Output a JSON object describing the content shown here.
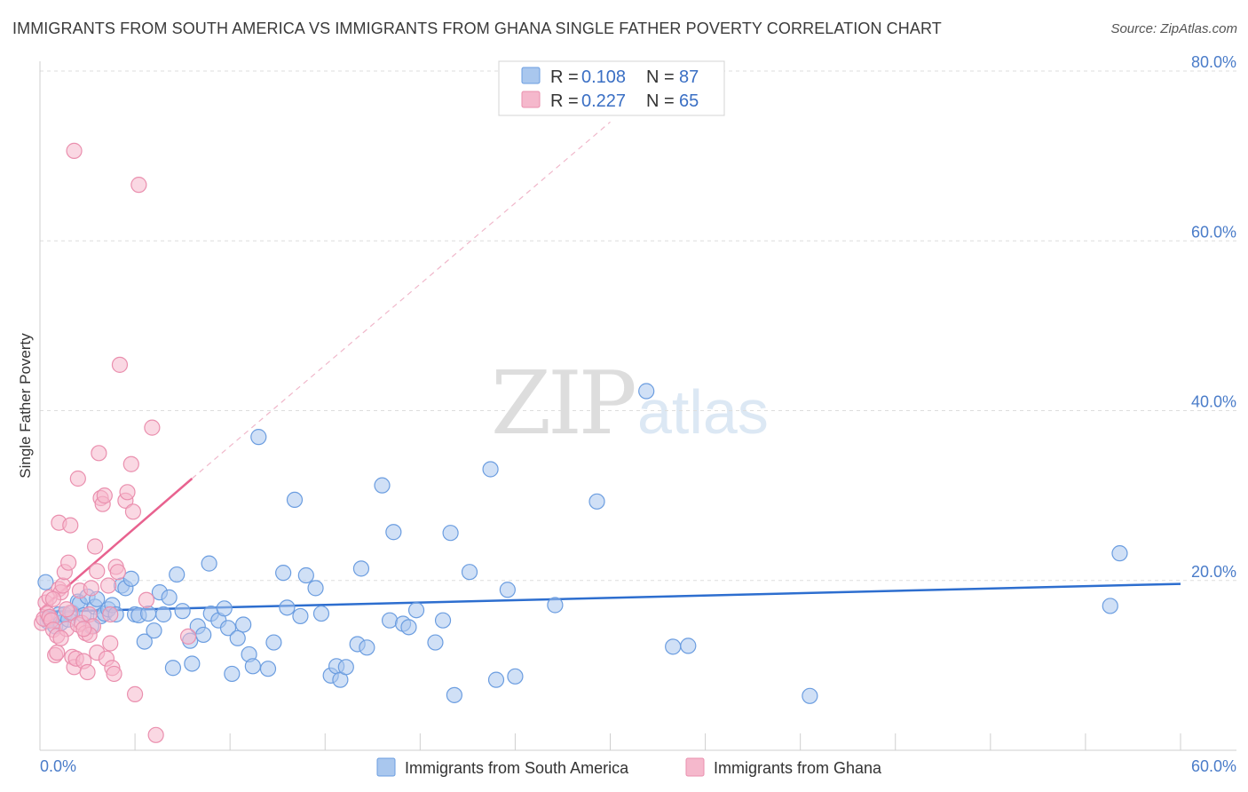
{
  "title": "IMMIGRANTS FROM SOUTH AMERICA VS IMMIGRANTS FROM GHANA SINGLE FATHER POVERTY CORRELATION CHART",
  "source": "Source: ZipAtlas.com",
  "watermark": {
    "zip": "ZIP",
    "atlas": "atlas"
  },
  "colors": {
    "blue_fill": "#a9c7ee",
    "blue_stroke": "#6b9de0",
    "blue_line": "#2d6ecf",
    "pink_fill": "#f5b8cc",
    "pink_stroke": "#ea8fae",
    "pink_line": "#e8628f",
    "grid": "#dddddd",
    "tick_text": "#4a7cc9"
  },
  "legend": {
    "r_label": "R =",
    "n_label": "N =",
    "rows": [
      {
        "r": "0.108",
        "n": "87",
        "color": "#a9c7ee",
        "stroke": "#6b9de0"
      },
      {
        "r": "0.227",
        "n": "65",
        "color": "#f5b8cc",
        "stroke": "#ea8fae"
      }
    ]
  },
  "bottom_legend": [
    {
      "label": "Immigrants from South America",
      "color": "#a9c7ee",
      "stroke": "#6b9de0"
    },
    {
      "label": "Immigrants from Ghana",
      "color": "#f5b8cc",
      "stroke": "#ea8fae"
    }
  ],
  "chart_data": {
    "type": "scatter",
    "title": "IMMIGRANTS FROM SOUTH AMERICA VS IMMIGRANTS FROM GHANA SINGLE FATHER POVERTY CORRELATION CHART",
    "xlabel": "",
    "ylabel": "Single Father Poverty",
    "xlim": [
      0,
      60
    ],
    "ylim": [
      0,
      80
    ],
    "x_tick_labels": [
      "0.0%",
      "60.0%"
    ],
    "y_ticks": [
      20,
      40,
      60,
      80
    ],
    "y_tick_labels": [
      "20.0%",
      "40.0%",
      "60.0%",
      "80.0%"
    ],
    "grid": true,
    "series": [
      {
        "name": "Immigrants from South America",
        "r": 0.108,
        "n": 87,
        "trend": {
          "x": [
            0,
            60
          ],
          "y": [
            16.3,
            19.6
          ],
          "dashed_extension": false
        },
        "points": [
          [
            0.3,
            19.8
          ],
          [
            0.4,
            15.2
          ],
          [
            0.5,
            15.5
          ],
          [
            0.8,
            14.6
          ],
          [
            1.0,
            16.0
          ],
          [
            1.1,
            15.0
          ],
          [
            1.3,
            16.0
          ],
          [
            1.5,
            15.4
          ],
          [
            1.7,
            16.2
          ],
          [
            2.0,
            17.5
          ],
          [
            2.1,
            17.3
          ],
          [
            2.3,
            15.9
          ],
          [
            2.5,
            18.1
          ],
          [
            2.7,
            14.6
          ],
          [
            2.9,
            16.9
          ],
          [
            3.0,
            17.8
          ],
          [
            3.2,
            15.8
          ],
          [
            3.4,
            16.1
          ],
          [
            3.6,
            16.6
          ],
          [
            3.8,
            17.1
          ],
          [
            4.0,
            16.0
          ],
          [
            4.3,
            19.4
          ],
          [
            4.5,
            19.1
          ],
          [
            4.8,
            20.2
          ],
          [
            5.0,
            16.0
          ],
          [
            5.2,
            15.9
          ],
          [
            5.5,
            12.8
          ],
          [
            5.7,
            16.1
          ],
          [
            6.0,
            14.1
          ],
          [
            6.3,
            18.6
          ],
          [
            6.5,
            16.0
          ],
          [
            6.8,
            18.0
          ],
          [
            7.0,
            9.7
          ],
          [
            7.2,
            20.7
          ],
          [
            7.5,
            16.4
          ],
          [
            7.9,
            12.9
          ],
          [
            8.0,
            10.2
          ],
          [
            8.3,
            14.6
          ],
          [
            8.6,
            13.6
          ],
          [
            8.9,
            22.0
          ],
          [
            9.0,
            16.1
          ],
          [
            9.4,
            15.3
          ],
          [
            9.7,
            16.7
          ],
          [
            9.9,
            14.4
          ],
          [
            10.1,
            9.0
          ],
          [
            10.4,
            13.2
          ],
          [
            10.7,
            14.8
          ],
          [
            11.0,
            11.3
          ],
          [
            11.2,
            9.9
          ],
          [
            11.5,
            36.9
          ],
          [
            12.0,
            9.6
          ],
          [
            12.3,
            12.7
          ],
          [
            12.8,
            20.9
          ],
          [
            13.0,
            16.8
          ],
          [
            13.4,
            29.5
          ],
          [
            13.7,
            15.8
          ],
          [
            14.0,
            20.6
          ],
          [
            14.5,
            19.1
          ],
          [
            14.8,
            16.1
          ],
          [
            15.3,
            8.8
          ],
          [
            15.6,
            9.9
          ],
          [
            15.8,
            8.3
          ],
          [
            16.1,
            9.8
          ],
          [
            16.7,
            12.5
          ],
          [
            16.9,
            21.4
          ],
          [
            17.2,
            12.1
          ],
          [
            18.0,
            31.2
          ],
          [
            18.4,
            15.3
          ],
          [
            18.6,
            25.7
          ],
          [
            19.1,
            14.9
          ],
          [
            19.4,
            14.5
          ],
          [
            19.8,
            16.5
          ],
          [
            20.8,
            12.7
          ],
          [
            21.2,
            15.3
          ],
          [
            21.6,
            25.6
          ],
          [
            21.8,
            6.5
          ],
          [
            22.6,
            21.0
          ],
          [
            23.7,
            33.1
          ],
          [
            24.0,
            8.3
          ],
          [
            24.6,
            18.9
          ],
          [
            25.0,
            8.7
          ],
          [
            27.1,
            17.1
          ],
          [
            29.3,
            29.3
          ],
          [
            31.9,
            42.3
          ],
          [
            33.3,
            12.2
          ],
          [
            34.1,
            12.3
          ],
          [
            40.5,
            6.4
          ],
          [
            56.3,
            17.0
          ],
          [
            56.8,
            23.2
          ]
        ]
      },
      {
        "name": "Immigrants from Ghana",
        "r": 0.227,
        "n": 65,
        "trend": {
          "x": [
            0,
            8.0
          ],
          "y": [
            16.5,
            32.0
          ],
          "dashed_extension": true,
          "dashed_to": {
            "x": 30.0,
            "y": 74.0
          }
        },
        "points": [
          [
            0.1,
            15.0
          ],
          [
            0.2,
            15.5
          ],
          [
            0.3,
            17.4
          ],
          [
            0.4,
            16.1
          ],
          [
            0.5,
            15.7
          ],
          [
            0.6,
            15.3
          ],
          [
            0.7,
            14.2
          ],
          [
            0.8,
            11.2
          ],
          [
            0.9,
            13.5
          ],
          [
            1.0,
            19.0
          ],
          [
            1.0,
            26.8
          ],
          [
            1.1,
            18.6
          ],
          [
            1.2,
            19.4
          ],
          [
            1.3,
            21.0
          ],
          [
            1.4,
            14.3
          ],
          [
            1.5,
            22.1
          ],
          [
            1.6,
            16.2
          ],
          [
            1.7,
            11.0
          ],
          [
            1.8,
            9.8
          ],
          [
            1.9,
            10.8
          ],
          [
            2.0,
            14.8
          ],
          [
            2.1,
            18.8
          ],
          [
            2.2,
            15.0
          ],
          [
            2.3,
            10.5
          ],
          [
            2.4,
            13.8
          ],
          [
            2.5,
            9.2
          ],
          [
            2.6,
            16.0
          ],
          [
            2.7,
            19.1
          ],
          [
            2.8,
            14.6
          ],
          [
            2.9,
            24.0
          ],
          [
            3.0,
            11.5
          ],
          [
            3.1,
            35.0
          ],
          [
            3.2,
            29.7
          ],
          [
            3.3,
            29.0
          ],
          [
            3.4,
            30.0
          ],
          [
            3.5,
            10.8
          ],
          [
            3.6,
            19.4
          ],
          [
            3.7,
            12.6
          ],
          [
            3.8,
            9.7
          ],
          [
            3.9,
            9.0
          ],
          [
            4.0,
            21.6
          ],
          [
            4.1,
            21.0
          ],
          [
            4.2,
            45.4
          ],
          [
            4.5,
            29.4
          ],
          [
            4.6,
            30.4
          ],
          [
            4.8,
            33.7
          ],
          [
            4.9,
            28.1
          ],
          [
            5.0,
            6.6
          ],
          [
            5.2,
            66.6
          ],
          [
            5.6,
            17.7
          ],
          [
            5.9,
            38.0
          ],
          [
            6.1,
            1.8
          ],
          [
            1.8,
            70.6
          ],
          [
            0.9,
            11.5
          ],
          [
            1.4,
            16.6
          ],
          [
            2.0,
            32.0
          ],
          [
            2.6,
            13.6
          ],
          [
            3.0,
            21.1
          ],
          [
            3.7,
            16.0
          ],
          [
            0.5,
            18.0
          ],
          [
            1.1,
            13.2
          ],
          [
            1.6,
            26.5
          ],
          [
            2.3,
            14.3
          ],
          [
            0.7,
            17.8
          ],
          [
            7.8,
            13.4
          ]
        ]
      }
    ]
  }
}
